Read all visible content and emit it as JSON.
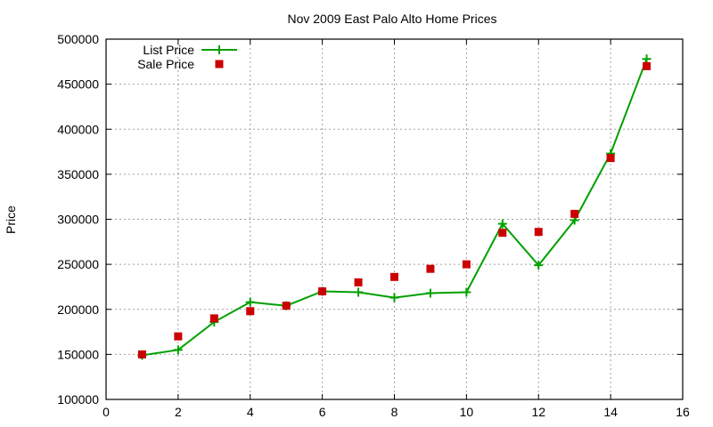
{
  "chart_data": {
    "type": "line",
    "title": "Nov 2009 East Palo Alto Home Prices",
    "xlabel": "",
    "ylabel": "Price",
    "xlim": [
      0,
      16
    ],
    "ylim": [
      100000,
      500000
    ],
    "x_ticks": [
      0,
      2,
      4,
      6,
      8,
      10,
      12,
      14,
      16
    ],
    "y_ticks": [
      100000,
      150000,
      200000,
      250000,
      300000,
      350000,
      400000,
      450000,
      500000
    ],
    "grid": true,
    "legend_position": "top-left",
    "x": [
      1,
      2,
      3,
      4,
      5,
      6,
      7,
      8,
      9,
      10,
      11,
      12,
      13,
      14,
      15
    ],
    "series": [
      {
        "name": "List Price",
        "style": "line+points",
        "marker": "plus",
        "color": "#00a000",
        "values": [
          149000,
          155000,
          186000,
          208000,
          204000,
          220000,
          219000,
          213000,
          218000,
          219000,
          295000,
          249000,
          299000,
          373000,
          478000
        ]
      },
      {
        "name": "Sale Price",
        "style": "points",
        "marker": "square",
        "color": "#cc0000",
        "values": [
          150000,
          170000,
          190000,
          198000,
          204000,
          220000,
          230000,
          236000,
          245000,
          250000,
          285000,
          286000,
          306000,
          368000,
          470000
        ]
      }
    ]
  }
}
